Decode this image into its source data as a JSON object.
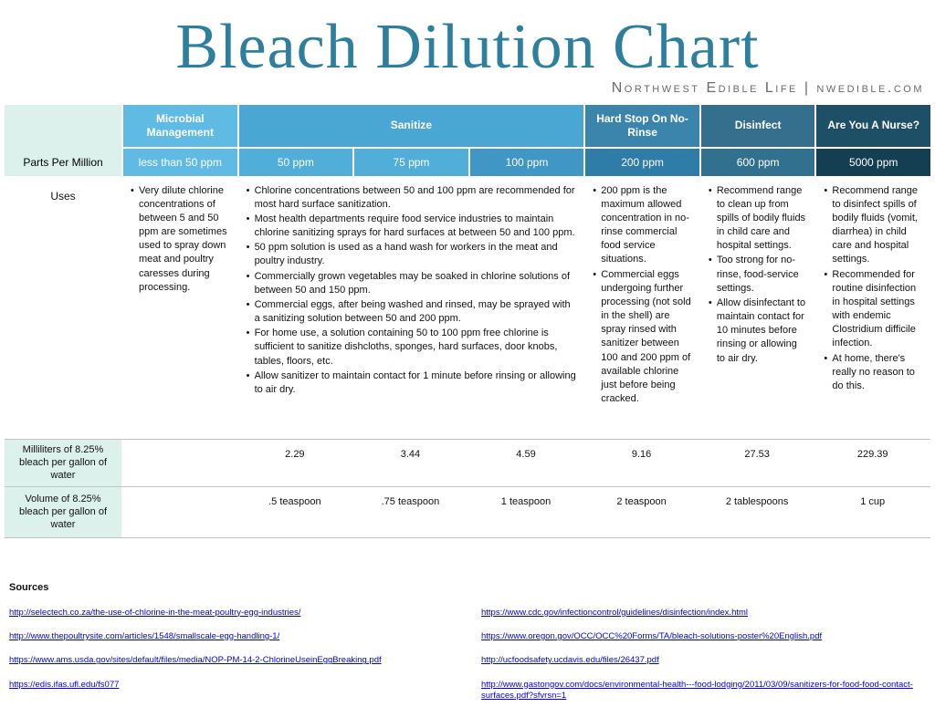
{
  "page": {
    "title": "Bleach Dilution Chart",
    "subtitle": "Northwest Edible Life | nwedible.com"
  },
  "theme": {
    "title_color": "#2e7f9e",
    "mint": "#dcf1ec",
    "link_color": "#0000e6"
  },
  "table": {
    "row_label_header": "Parts Per Million",
    "groups": [
      {
        "label": "Microbial Management",
        "color": "#5fbbe3"
      },
      {
        "label": "Sanitize",
        "color": "#4aa6d3"
      },
      {
        "label": "Hard Stop On No-Rinse",
        "color": "#3b85ad"
      },
      {
        "label": "Disinfect",
        "color": "#346f8e"
      },
      {
        "label": "Are You A Nurse?",
        "color": "#1d4f66"
      }
    ],
    "ppm_columns": [
      {
        "label": "less than 50 ppm",
        "color": "#5fbbe3"
      },
      {
        "label": "50 ppm",
        "color": "#51aed9"
      },
      {
        "label": "75 ppm",
        "color": "#51aed9"
      },
      {
        "label": "100 ppm",
        "color": "#4096c4"
      },
      {
        "label": "200 ppm",
        "color": "#2e7ca8"
      },
      {
        "label": "600 ppm",
        "color": "#31708f"
      },
      {
        "label": "5000 ppm",
        "color": "#143f53"
      }
    ],
    "uses": {
      "row_label": "Uses",
      "microbial": [
        "Very dilute chlorine concentrations of between 5 and 50 ppm are sometimes used to spray down meat and poultry caresses during processing."
      ],
      "sanitize": [
        "Chlorine concentrations between 50 and 100 ppm are recommended for most hard surface sanitization.",
        "Most health departments require food service industries to maintain chlorine sanitizing sprays for hard surfaces at between 50 and 100 ppm.",
        "50 ppm solution is used as a hand wash for workers in the meat and poultry industry.",
        "Commercially grown vegetables may be soaked in chlorine solutions of between 50 and 150 ppm.",
        "Commercial eggs, after being washed and rinsed, may be sprayed with a sanitizing solution between 50 and 200 ppm.",
        "For home use, a solution containing 50 to 100 ppm free chlorine is sufficient to sanitize dishcloths, sponges, hard surfaces, door knobs, tables, floors, etc.",
        "Allow sanitizer to maintain contact for 1 minute before rinsing or allowing to air dry."
      ],
      "hard_stop": [
        "200 ppm is the maximum allowed concentration in no-rinse commercial food service situations.",
        "Commercial eggs undergoing further processing (not sold in the shell) are spray rinsed with sanitizer between 100 and 200 ppm of available chlorine just before being cracked."
      ],
      "disinfect": [
        "Recommend range to clean up from spills of bodily fluids in child care and hospital settings.",
        "Too strong for no-rinse, food-service settings.",
        "Allow disinfectant to maintain contact for 10 minutes before rinsing or allowing to air dry."
      ],
      "nurse": [
        "Recommend range to disinfect spills of bodily fluids (vomit, diarrhea) in child care and hospital settings.",
        "Recommended for routine disinfection in hospital settings with endemic Clostridium difficile infection.",
        "At home, there's really no reason to do this."
      ]
    },
    "ml_row": {
      "label": "Milliliters of 8.25% bleach per gallon of water",
      "values": [
        "",
        "2.29",
        "3.44",
        "4.59",
        "9.16",
        "27.53",
        "229.39"
      ]
    },
    "volume_row": {
      "label": "Volume of 8.25% bleach per gallon of water",
      "values": [
        "",
        ".5 teaspoon",
        ".75 teaspoon",
        "1 teaspoon",
        "2 teaspoon",
        "2 tablespoons",
        "1 cup"
      ]
    }
  },
  "sources": {
    "heading": "Sources",
    "left": [
      "http://selectech.co.za/the-use-of-chlorine-in-the-meat-poultry-egg-industries/",
      "http://www.thepoultrysite.com/articles/1548/smallscale-egg-handling-1/",
      "https://www.ams.usda.gov/sites/default/files/media/NOP-PM-14-2-ChlorineUseinEggBreaking.pdf",
      "https://edis.ifas.ufl.edu/fs077"
    ],
    "right": [
      "https://www.cdc.gov/infectioncontrol/guidelines/disinfection/index.html",
      "https://www.oregon.gov/OCC/OCC%20Forms/TA/bleach-solutions-poster%20English.pdf",
      "http://ucfoodsafety.ucdavis.edu/files/26437.pdf",
      "http://www.gastongov.com/docs/environmental-health---food-lodging/2011/03/09/sanitizers-for-food-food-contact-surfaces.pdf?sfvrsn=1"
    ]
  }
}
